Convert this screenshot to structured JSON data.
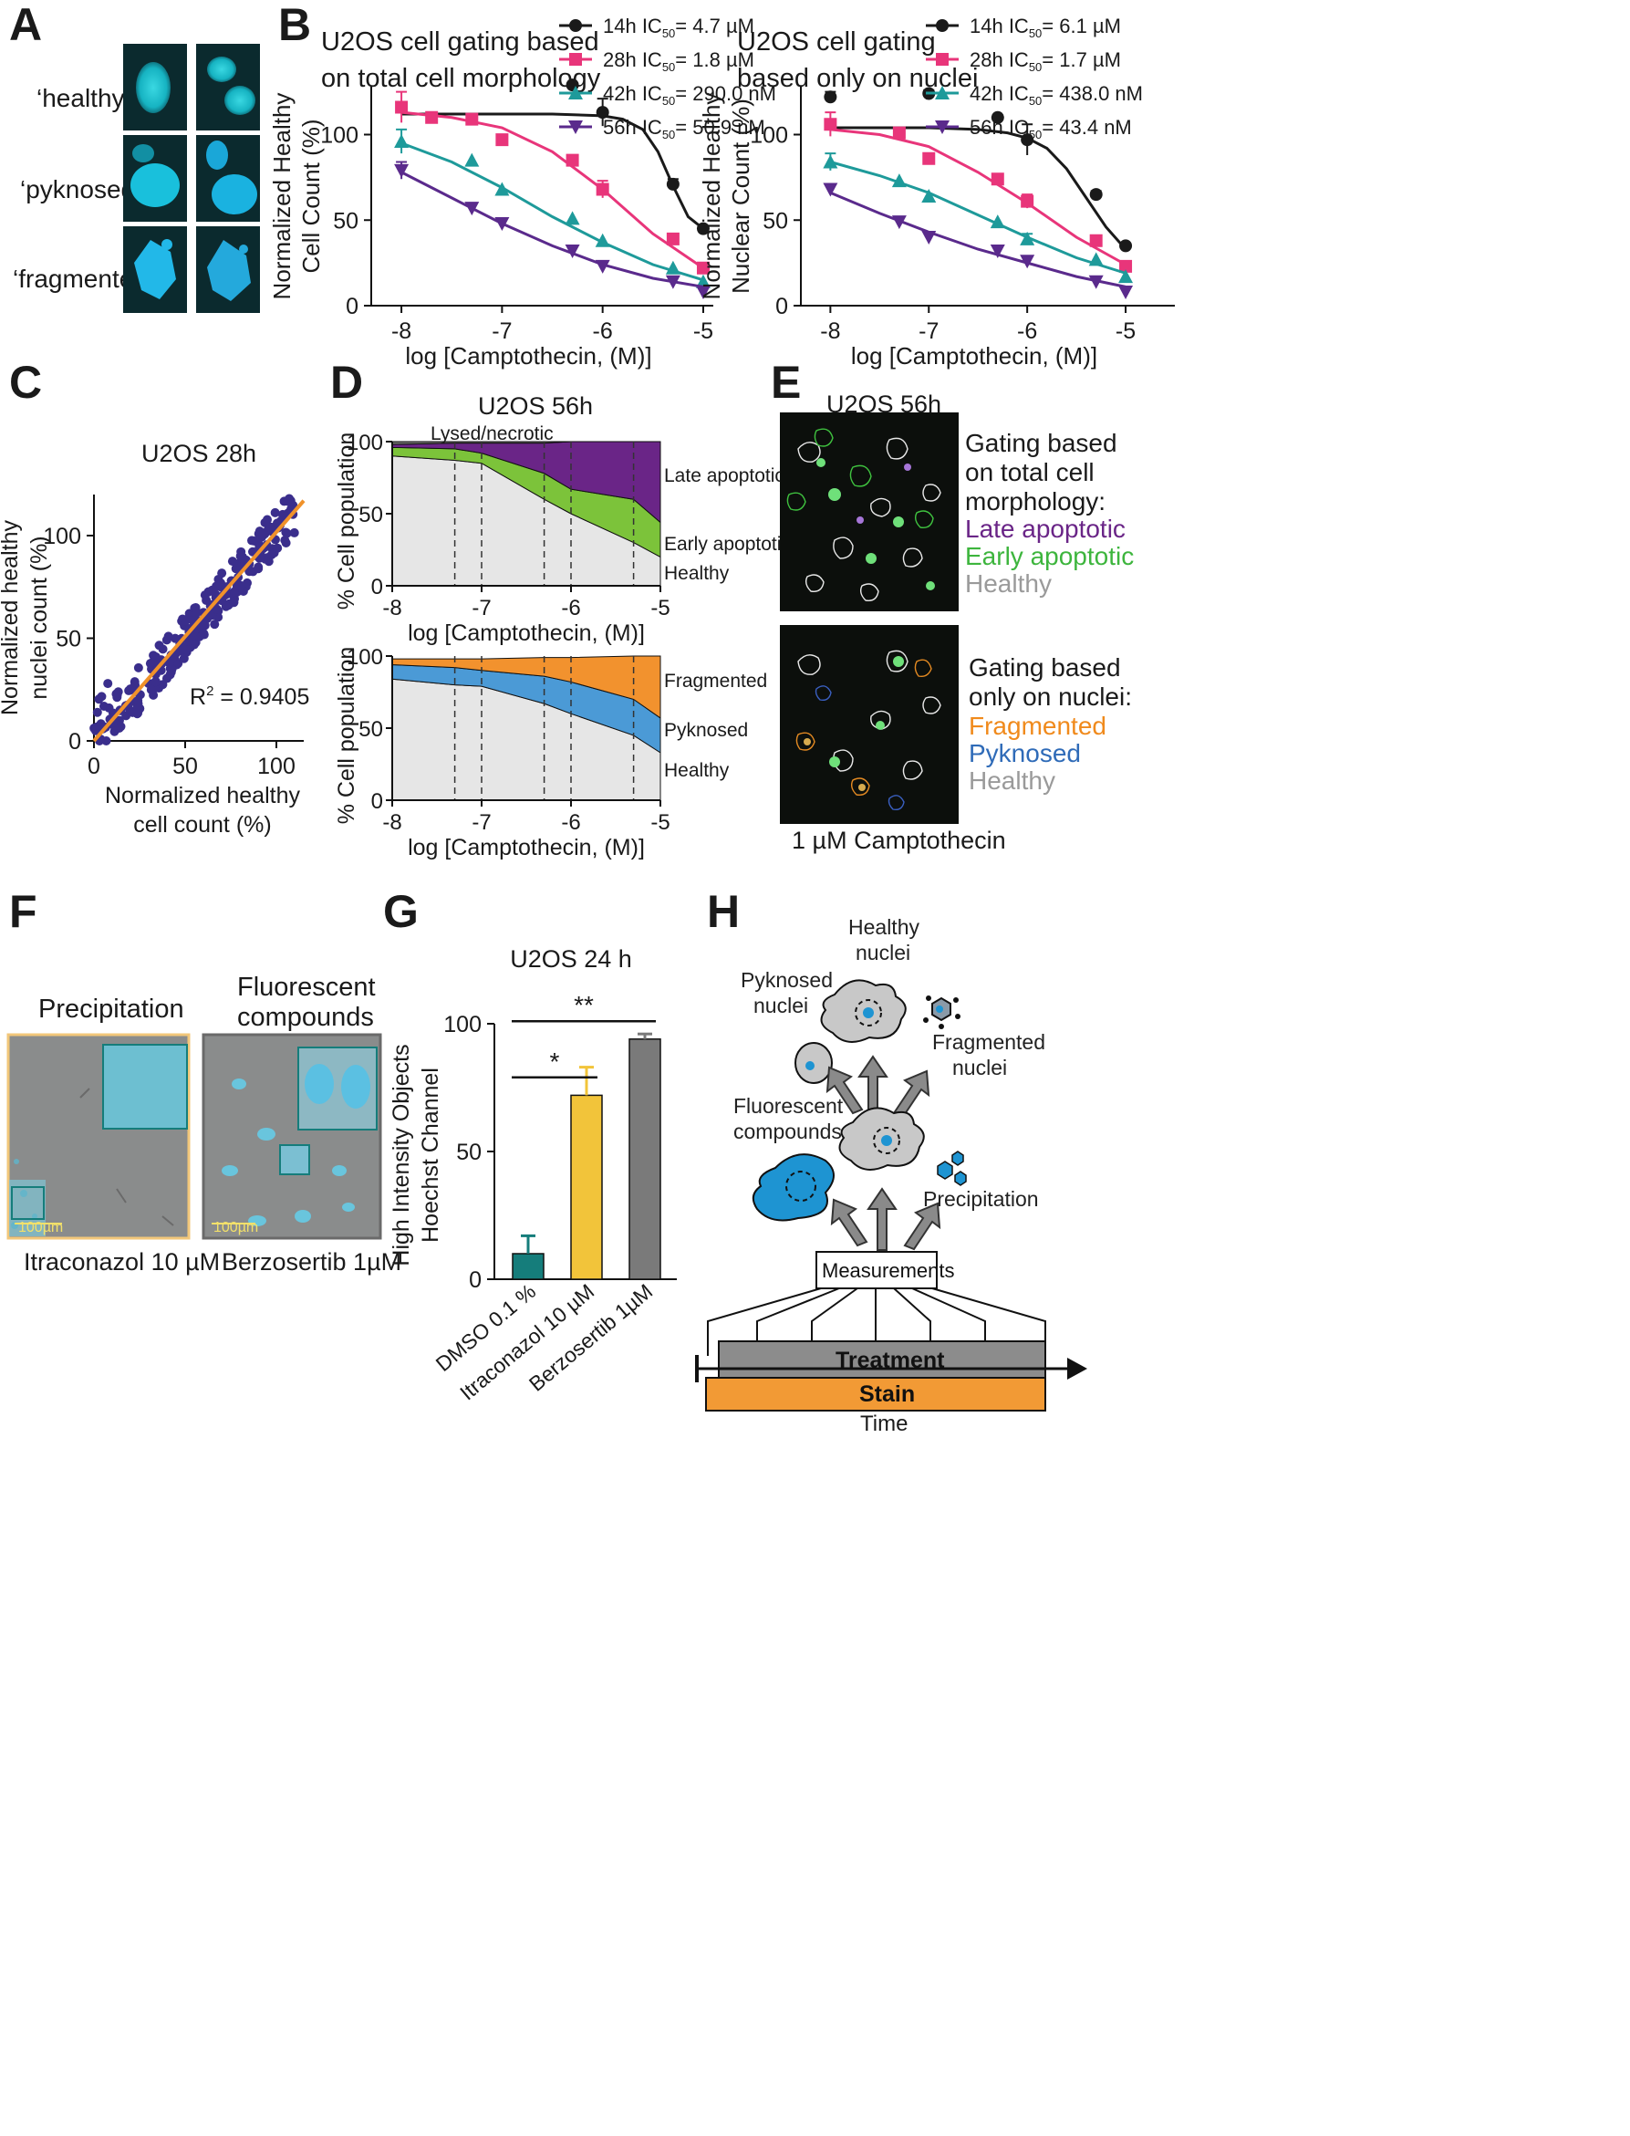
{
  "panel_letters": [
    "A",
    "B",
    "C",
    "D",
    "E",
    "F",
    "G",
    "H"
  ],
  "panel_a": {
    "labels": [
      "‘healthy’",
      "‘pyknosed’",
      "‘fragmented’"
    ]
  },
  "panel_b": {
    "chart_data": [
      {
        "type": "line",
        "title": "U2OS cell gating based on total cell morphology",
        "title_lines": [
          "U2OS cell gating based",
          "on total cell morphology"
        ],
        "ylabel_lines": [
          "Normalized Healthy",
          "Cell Count (%)"
        ],
        "xlabel": "log [Camptothecin, (M)]",
        "xticks": [
          "-8",
          "-7",
          "-6",
          "-5"
        ],
        "yticks": [
          "0",
          "50",
          "100"
        ],
        "xlim": [
          -8.3,
          -4.9
        ],
        "ylim": [
          0,
          128
        ],
        "series": [
          {
            "name": "14h",
            "ic50": "4.7 µM",
            "color": "#1a1a1a",
            "marker": "circle",
            "x": [
              -6.3,
              -6.0,
              -5.3,
              -5.0
            ],
            "y": [
              129,
              113,
              71,
              45
            ],
            "err": [
              0,
              8,
              3,
              0
            ],
            "fit_x": [
              -8,
              -7.5,
              -7,
              -6.5,
              -6,
              -5.8,
              -5.6,
              -5.45,
              -5.3,
              -5.15,
              -5.0
            ],
            "fit_y": [
              112,
              112,
              112,
              112,
              111,
              109,
              103,
              90,
              70,
              52,
              45
            ]
          },
          {
            "name": "28h",
            "ic50": "1.8 µM",
            "color": "#e8357a",
            "marker": "square",
            "x": [
              -8,
              -7.7,
              -7.3,
              -7.0,
              -6.3,
              -6.0,
              -5.3,
              -5.0
            ],
            "y": [
              116,
              110,
              109,
              97,
              85,
              68,
              39,
              22
            ],
            "err": [
              9,
              0,
              0,
              0,
              0,
              5,
              0,
              0
            ],
            "fit_x": [
              -8,
              -7.5,
              -7,
              -6.5,
              -6,
              -5.5,
              -5.0
            ],
            "fit_y": [
              113,
              110,
              104,
              90,
              68,
              42,
              22
            ]
          },
          {
            "name": "42h",
            "ic50": "290.0 nM",
            "color": "#1e9a9a",
            "marker": "triangle",
            "x": [
              -8,
              -7.3,
              -7.0,
              -6.3,
              -6.0,
              -5.3,
              -5.0
            ],
            "y": [
              96,
              85,
              68,
              51,
              38,
              22,
              14
            ],
            "err": [
              7,
              0,
              0,
              0,
              0,
              0,
              0
            ],
            "fit_x": [
              -8,
              -7.5,
              -7,
              -6.5,
              -6,
              -5.5,
              -5.0
            ],
            "fit_y": [
              95,
              84,
              69,
              52,
              37,
              24,
              15
            ]
          },
          {
            "name": "56h",
            "ic50": "50.9 nM",
            "color": "#5a2a8c",
            "marker": "triangle-down",
            "x": [
              -8,
              -7.3,
              -7.0,
              -6.3,
              -6.0,
              -5.3,
              -5.0
            ],
            "y": [
              79,
              57,
              48,
              32,
              23,
              14,
              8
            ],
            "err": [
              5,
              0,
              0,
              0,
              0,
              0,
              0
            ],
            "fit_x": [
              -8,
              -7.5,
              -7,
              -6.5,
              -6,
              -5.5,
              -5.0
            ],
            "fit_y": [
              78,
              63,
              48,
              35,
              24,
              16,
              11
            ]
          }
        ]
      },
      {
        "type": "line",
        "title": "U2OS cell gating based only on nuclei",
        "title_lines": [
          "U2OS cell gating",
          "based only on nuclei"
        ],
        "ylabel_lines": [
          "Normalized Healthy",
          "Nuclear Count (%)"
        ],
        "xlabel": "log [Camptothecin, (M)]",
        "xticks": [
          "-8",
          "-7",
          "-6",
          "-5"
        ],
        "yticks": [
          "0",
          "50",
          "100"
        ],
        "xlim": [
          -8.3,
          -4.5
        ],
        "ylim": [
          0,
          128
        ],
        "series": [
          {
            "name": "14h",
            "ic50": "6.1 µM",
            "color": "#1a1a1a",
            "marker": "circle",
            "x": [
              -8,
              -7.0,
              -6.3,
              -6.0,
              -5.3,
              -5.0
            ],
            "y": [
              122,
              124,
              110,
              97,
              65,
              35
            ],
            "err": [
              3,
              2,
              0,
              9,
              2,
              0
            ],
            "fit_x": [
              -8,
              -7.5,
              -7,
              -6.5,
              -6.2,
              -6,
              -5.8,
              -5.6,
              -5.4,
              -5.2,
              -5.0
            ],
            "fit_y": [
              104,
              104,
              104,
              103,
              101,
              98,
              92,
              80,
              63,
              46,
              33
            ]
          },
          {
            "name": "28h",
            "ic50": "1.7 µM",
            "color": "#e8357a",
            "marker": "square",
            "x": [
              -8,
              -7.3,
              -7.0,
              -6.3,
              -6.0,
              -5.3,
              -5.0
            ],
            "y": [
              106,
              101,
              86,
              74,
              61,
              38,
              23
            ],
            "err": [
              7,
              0,
              0,
              0,
              4,
              3,
              0
            ],
            "fit_x": [
              -8,
              -7.5,
              -7,
              -6.5,
              -6,
              -5.5,
              -5.0
            ],
            "fit_y": [
              103,
              100,
              93,
              78,
              60,
              40,
              24
            ]
          },
          {
            "name": "42h",
            "ic50": "438.0 nM",
            "color": "#1e9a9a",
            "marker": "triangle",
            "x": [
              -8,
              -7.3,
              -7.0,
              -6.3,
              -6.0,
              -5.3,
              -5.0
            ],
            "y": [
              84,
              73,
              64,
              49,
              39,
              27,
              17
            ],
            "err": [
              5,
              0,
              0,
              0,
              3,
              0,
              0
            ],
            "fit_x": [
              -8,
              -7.5,
              -7,
              -6.5,
              -6,
              -5.5,
              -5.0
            ],
            "fit_y": [
              84,
              76,
              66,
              53,
              40,
              28,
              19
            ]
          },
          {
            "name": "56h",
            "ic50": "43.4 nM",
            "color": "#5a2a8c",
            "marker": "triangle-down",
            "x": [
              -8,
              -7.3,
              -7.0,
              -6.3,
              -6.0,
              -5.3,
              -5.0
            ],
            "y": [
              68,
              49,
              40,
              32,
              26,
              14,
              8
            ],
            "err": [
              0,
              0,
              0,
              0,
              0,
              0,
              0
            ],
            "fit_x": [
              -8,
              -7.5,
              -7,
              -6.5,
              -6,
              -5.5,
              -5.0
            ],
            "fit_y": [
              66,
              54,
              43,
              33,
              25,
              17,
              11
            ]
          }
        ]
      }
    ]
  },
  "panel_c": {
    "chart_data": {
      "type": "scatter",
      "title": "U2OS 28h",
      "xlabel_lines": [
        "Normalized healthy",
        "cell count (%)"
      ],
      "ylabel_lines": [
        "Normalized healthy",
        "nuclei count (%)"
      ],
      "xticks": [
        "0",
        "50",
        "100"
      ],
      "yticks": [
        "0",
        "50",
        "100"
      ],
      "xlim": [
        0,
        115
      ],
      "ylim": [
        0,
        120
      ],
      "r2_prefix": "R",
      "r2_sup": "2",
      "r2_value": " = 0.9405",
      "point_color": "#3a2e8c",
      "fit_color": "#f0922a",
      "fit_line": {
        "x": [
          0,
          115
        ],
        "y": [
          0,
          117
        ]
      },
      "n_points": 260,
      "seed": 7
    }
  },
  "panel_d": {
    "title": "U2OS 56h",
    "chart_data": [
      {
        "type": "area",
        "ylabel": "% Cell population",
        "xlabel": "log [Camptothecin, (M)]",
        "xticks": [
          "-8",
          "-7",
          "-6",
          "-5"
        ],
        "yticks": [
          "0",
          "50",
          "100"
        ],
        "xlim": [
          -8,
          -5
        ],
        "ylim": [
          0,
          100
        ],
        "dashed_x": [
          -7.3,
          -7.0,
          -6.3,
          -6.0,
          -5.3
        ],
        "x": [
          -8,
          -7.3,
          -7.0,
          -6.3,
          -6.0,
          -5.3,
          -5.0
        ],
        "series": [
          {
            "name": "Healthy",
            "color": "#e6e6e6",
            "upper": [
              90,
              87,
              85,
              60,
              50,
              30,
              20
            ]
          },
          {
            "name": "Early apoptotic",
            "color": "#7cc33a",
            "upper": [
              96,
              95,
              92,
              78,
              67,
              60,
              44
            ]
          },
          {
            "name": "Late apoptotic",
            "color": "#6a2587",
            "upper": [
              98,
              99,
              99,
              99,
              100,
              100,
              100
            ]
          },
          {
            "name": "Lysed/necrotic",
            "color": "#707070",
            "upper": [
              100,
              100,
              100,
              100,
              100,
              100,
              100
            ]
          }
        ],
        "labels": [
          "Lysed/necrotic",
          "Late apoptotic",
          "Early apoptotic",
          "Healthy"
        ]
      },
      {
        "type": "area",
        "ylabel": "% Cell population",
        "xlabel": "log [Camptothecin, (M)]",
        "xticks": [
          "-8",
          "-7",
          "-6",
          "-5"
        ],
        "yticks": [
          "0",
          "50",
          "100"
        ],
        "xlim": [
          -8,
          -5
        ],
        "ylim": [
          0,
          100
        ],
        "dashed_x": [
          -7.3,
          -7.0,
          -6.3,
          -6.0,
          -5.3
        ],
        "x": [
          -8,
          -7.3,
          -7.0,
          -6.3,
          -6.0,
          -5.3,
          -5.0
        ],
        "series": [
          {
            "name": "Healthy",
            "color": "#e6e6e6",
            "upper": [
              84,
              80,
              79,
              67,
              60,
              45,
              33
            ]
          },
          {
            "name": "Pyknosed",
            "color": "#4b9ad6",
            "upper": [
              94,
              92,
              90,
              86,
              82,
              70,
              57
            ]
          },
          {
            "name": "Fragmented",
            "color": "#f2922e",
            "upper": [
              98,
              98,
              98,
              99,
              99,
              100,
              100
            ]
          }
        ],
        "labels": [
          "Fragmented",
          "Pyknosed",
          "Healthy"
        ]
      }
    ]
  },
  "panel_e": {
    "title": "U2OS 56h",
    "top_legend": {
      "heading": [
        "Gating based",
        "on total cell",
        "morphology:"
      ],
      "items": [
        {
          "label": "Late apoptotic",
          "color": "#6a2587"
        },
        {
          "label": "Early apoptotic",
          "color": "#3db53d"
        },
        {
          "label": "Healthy",
          "color": "#9a9a9a"
        }
      ]
    },
    "bottom_legend": {
      "heading": [
        "Gating based",
        "only on nuclei:"
      ],
      "items": [
        {
          "label": "Fragmented",
          "color": "#f08a1c"
        },
        {
          "label": "Pyknosed",
          "color": "#2f6bb8"
        },
        {
          "label": "Healthy",
          "color": "#9a9a9a"
        }
      ]
    },
    "caption": "1 µM Camptothecin"
  },
  "panel_f": {
    "left_title": "Precipitation",
    "right_title_lines": [
      "Fluorescent",
      "compounds"
    ],
    "scale_left": "100µm",
    "scale_right": "100µm",
    "left_caption": "Itraconazol 10 µM",
    "right_caption": "Berzosertib 1µM"
  },
  "panel_g": {
    "chart_data": {
      "type": "bar",
      "title": "U2OS 24 h",
      "ylabel_lines": [
        "High Intensity Objects",
        "Hoechst Channel"
      ],
      "categories": [
        "DMSO 0.1 %",
        "Itraconazol 10 µM",
        "Berzosertib 1µM"
      ],
      "values": [
        10,
        72,
        94
      ],
      "errors": [
        7,
        11,
        2
      ],
      "colors": [
        "#157d7b",
        "#f2c43a",
        "#7a7a7a"
      ],
      "yticks": [
        "0",
        "50",
        "100"
      ],
      "ylim": [
        0,
        100
      ],
      "significance": [
        {
          "label": "*",
          "pair": [
            0,
            1
          ]
        },
        {
          "label": "**",
          "pair": [
            0,
            2
          ]
        }
      ]
    }
  },
  "panel_h": {
    "labels": {
      "healthy": [
        "Healthy",
        "nuclei"
      ],
      "pyknosed": [
        "Pyknosed",
        "nuclei"
      ],
      "fragmented": [
        "Fragmented",
        "nuclei"
      ],
      "fluorescent": [
        "Fluorescent",
        "compounds"
      ],
      "precipitation": "Precipitation",
      "measurements": "Measurements",
      "treatment": "Treatment",
      "stain": "Stain",
      "time": "Time"
    },
    "colors": {
      "cell_gray": "#c8c8c8",
      "cell_blue": "#1e94d2",
      "arrow": "#8a8a8a",
      "treatment": "#8c8c8c",
      "stain": "#f29a35"
    }
  }
}
